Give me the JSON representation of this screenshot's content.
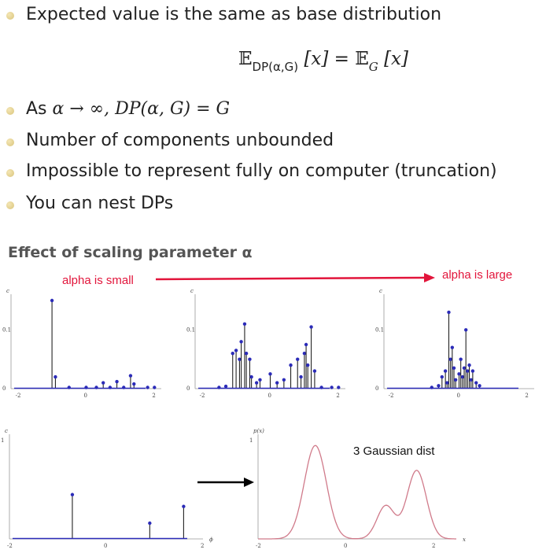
{
  "bullets": [
    {
      "text": "Expected value is the same as base distribution"
    },
    {
      "prefix": "As ",
      "math": "α → ∞, DP(α, G) = G"
    },
    {
      "text": "Number of components unbounded"
    },
    {
      "text": "Impossible to represent fully on computer (truncation)"
    },
    {
      "text": "You can nest DPs"
    }
  ],
  "formula": {
    "lhs_op": "𝔼",
    "lhs_sub": "DP(α,G)",
    "lhs_arg": "[x] = ",
    "rhs_op": "𝔼",
    "rhs_sub": "G",
    "rhs_arg": "[x]"
  },
  "section_title": "Effect of scaling parameter α",
  "annotations": {
    "alpha_small": "alpha is small",
    "alpha_large": "alpha is large",
    "gaussian": "3 Gaussian dist"
  },
  "colors": {
    "red_label": "#e2153b",
    "stem_dot": "#2b2bb8",
    "curve": "#d07a8a"
  },
  "chart_data": [
    {
      "type": "stem",
      "title": "",
      "ylabel": "c",
      "xlim": [
        -2.2,
        2.2
      ],
      "ylim": [
        0,
        0.15
      ],
      "xticks": [
        "-2",
        "0",
        "2"
      ],
      "yticks": [
        "0",
        "0.1"
      ],
      "points": [
        [
          -1.0,
          0.15
        ],
        [
          -0.9,
          0.02
        ],
        [
          0.5,
          0.01
        ],
        [
          0.9,
          0.012
        ],
        [
          1.3,
          0.022
        ],
        [
          1.4,
          0.008
        ],
        [
          -0.5,
          0.002
        ],
        [
          0.0,
          0.002
        ],
        [
          0.3,
          0.002
        ],
        [
          0.7,
          0.002
        ],
        [
          1.1,
          0.002
        ],
        [
          1.8,
          0.002
        ],
        [
          2.0,
          0.002
        ]
      ]
    },
    {
      "type": "stem",
      "title": "",
      "ylabel": "c",
      "xlim": [
        -2.2,
        2.2
      ],
      "ylim": [
        0,
        0.15
      ],
      "xticks": [
        "-2",
        "0",
        "2"
      ],
      "yticks": [
        "0",
        "0.1"
      ],
      "points": [
        [
          -1.1,
          0.06
        ],
        [
          -1.0,
          0.065
        ],
        [
          -0.9,
          0.05
        ],
        [
          -0.85,
          0.08
        ],
        [
          -0.75,
          0.11
        ],
        [
          -0.7,
          0.06
        ],
        [
          -0.6,
          0.05
        ],
        [
          -0.55,
          0.02
        ],
        [
          -0.4,
          0.01
        ],
        [
          -0.3,
          0.015
        ],
        [
          0.0,
          0.025
        ],
        [
          0.2,
          0.01
        ],
        [
          0.4,
          0.015
        ],
        [
          0.6,
          0.04
        ],
        [
          0.8,
          0.05
        ],
        [
          0.9,
          0.02
        ],
        [
          1.0,
          0.06
        ],
        [
          1.05,
          0.075
        ],
        [
          1.1,
          0.04
        ],
        [
          1.2,
          0.105
        ],
        [
          1.3,
          0.03
        ],
        [
          -1.5,
          0.002
        ],
        [
          -1.3,
          0.004
        ],
        [
          1.5,
          0.002
        ],
        [
          1.8,
          0.002
        ],
        [
          2.0,
          0.002
        ]
      ]
    },
    {
      "type": "stem",
      "title": "",
      "ylabel": "c",
      "xlim": [
        -2.2,
        2.2
      ],
      "ylim": [
        0,
        0.15
      ],
      "xticks": [
        "-2",
        "0",
        "2"
      ],
      "yticks": [
        "0",
        "0.1"
      ],
      "points": [
        [
          -0.3,
          0.13
        ],
        [
          -0.5,
          0.02
        ],
        [
          -0.4,
          0.03
        ],
        [
          -0.35,
          0.01
        ],
        [
          -0.25,
          0.05
        ],
        [
          -0.2,
          0.07
        ],
        [
          -0.15,
          0.035
        ],
        [
          -0.1,
          0.015
        ],
        [
          0.0,
          0.025
        ],
        [
          0.05,
          0.05
        ],
        [
          0.1,
          0.02
        ],
        [
          0.15,
          0.035
        ],
        [
          0.2,
          0.1
        ],
        [
          0.25,
          0.03
        ],
        [
          0.3,
          0.04
        ],
        [
          0.35,
          0.015
        ],
        [
          0.4,
          0.03
        ],
        [
          0.5,
          0.01
        ],
        [
          0.6,
          0.005
        ],
        [
          -0.6,
          0.005
        ],
        [
          -0.8,
          0.002
        ]
      ]
    },
    {
      "type": "stem",
      "title": "",
      "ylabel": "c",
      "xlim": [
        -2,
        2
      ],
      "ylim": [
        0,
        1
      ],
      "xticks": [
        "-2",
        "0",
        "2"
      ],
      "yticks": [
        "1"
      ],
      "xlabel": "ϕ",
      "points": [
        [
          -0.7,
          0.45
        ],
        [
          0.9,
          0.16
        ],
        [
          1.6,
          0.33
        ]
      ]
    },
    {
      "type": "line",
      "title": "",
      "ylabel": "p(x)",
      "xlabel": "x",
      "xlim": [
        -2,
        2.5
      ],
      "ylim": [
        0,
        1
      ],
      "xticks": [
        "-2",
        "0",
        "2"
      ],
      "yticks": [
        "1"
      ],
      "components": [
        {
          "mean": -0.7,
          "sd": 0.25,
          "weight": 0.45
        },
        {
          "mean": 0.9,
          "sd": 0.2,
          "weight": 0.16
        },
        {
          "mean": 1.6,
          "sd": 0.22,
          "weight": 0.33
        }
      ]
    }
  ]
}
